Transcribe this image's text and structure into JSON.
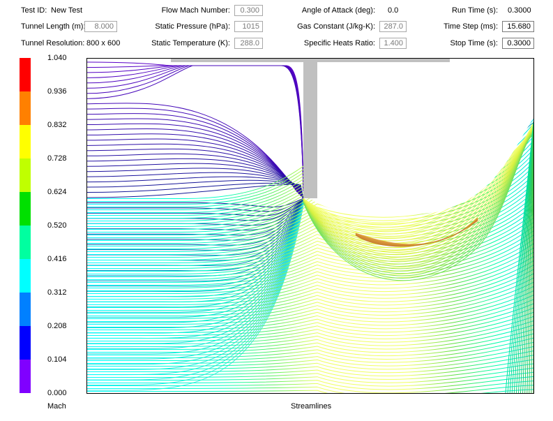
{
  "header": {
    "test_id_label": "Test ID:",
    "test_id_value": "New Test",
    "tunnel_length_label": "Tunnel Length (m):",
    "tunnel_length_value": "8.000",
    "tunnel_resolution_label": "Tunnel Resolution:",
    "tunnel_resolution_value": "800 x 600",
    "flow_mach_label": "Flow Mach Number:",
    "flow_mach_value": "0.300",
    "static_pressure_label": "Static Pressure (hPa):",
    "static_pressure_value": "1015",
    "static_temperature_label": "Static Temperature (K):",
    "static_temperature_value": "288.0",
    "angle_of_attack_label": "Angle of Attack (deg):",
    "angle_of_attack_value": "0.0",
    "gas_constant_label": "Gas Constant (J/kg-K):",
    "gas_constant_value": "287.0",
    "specific_heats_label": "Specific Heats Ratio:",
    "specific_heats_value": "1.400",
    "run_time_label": "Run Time (s):",
    "run_time_value": "0.3000",
    "time_step_label": "Time Step (ms):",
    "time_step_value": "15.680",
    "stop_time_label": "Stop Time (s):",
    "stop_time_value": "0.3000"
  },
  "colorbar": {
    "unit_label": "Mach",
    "ticks": [
      "1.040",
      "0.936",
      "0.832",
      "0.728",
      "0.624",
      "0.520",
      "0.416",
      "0.312",
      "0.208",
      "0.104",
      "0.000"
    ],
    "colors": [
      "#ff0000",
      "#ff8000",
      "#ffff00",
      "#c0ff00",
      "#00e000",
      "#00ffa0",
      "#00ffff",
      "#0080ff",
      "#0000ff",
      "#8000ff"
    ]
  },
  "plot": {
    "view_label": "Streamlines",
    "solid_color": "#c0c0c0"
  }
}
